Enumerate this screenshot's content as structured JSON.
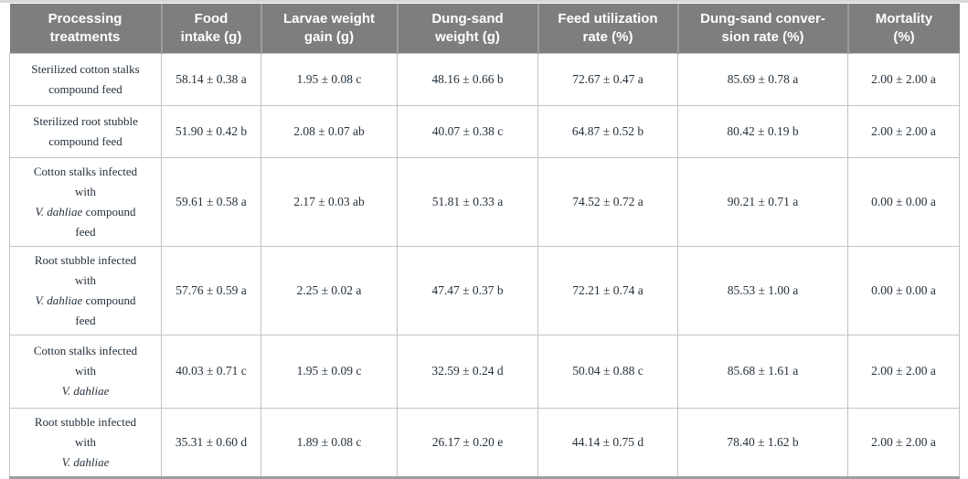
{
  "colors": {
    "header_bg": "#7e7e7e",
    "header_text": "#ffffff",
    "header_divider": "#9d9d9d",
    "body_text": "#25313c",
    "cell_border": "#c4c4c4",
    "bottom_border": "#9e9e9e",
    "top_border": "#d9d9d9"
  },
  "table": {
    "headers": [
      {
        "lines": [
          "Processing",
          "treatments"
        ]
      },
      {
        "lines": [
          "Food",
          "intake (g)"
        ]
      },
      {
        "lines": [
          "Larvae weight",
          "gain (g)"
        ]
      },
      {
        "lines": [
          "Dung-sand",
          "weight (g)"
        ]
      },
      {
        "lines": [
          "Feed utilization",
          "rate (%)"
        ]
      },
      {
        "lines": [
          "Dung-sand conver-",
          "sion rate (%)"
        ]
      },
      {
        "lines": [
          "Mortality",
          "(%)"
        ]
      }
    ],
    "rows": [
      {
        "treatment": [
          [
            {
              "t": "Sterilized cotton stalks",
              "i": false
            }
          ],
          [
            {
              "t": "compound feed",
              "i": false
            }
          ]
        ],
        "values": [
          "58.14 ± 0.38 a",
          "1.95 ± 0.08 c",
          "48.16 ± 0.66 b",
          "72.67 ± 0.47 a",
          "85.69 ± 0.78 a",
          "2.00 ± 2.00 a"
        ]
      },
      {
        "treatment": [
          [
            {
              "t": "Sterilized root stubble",
              "i": false
            }
          ],
          [
            {
              "t": "compound feed",
              "i": false
            }
          ]
        ],
        "values": [
          "51.90 ± 0.42 b",
          "2.08 ± 0.07 ab",
          "40.07 ± 0.38 c",
          "64.87 ± 0.52 b",
          "80.42 ± 0.19 b",
          "2.00 ± 2.00 a"
        ]
      },
      {
        "treatment": [
          [
            {
              "t": "Cotton stalks infected",
              "i": false
            }
          ],
          [
            {
              "t": "with",
              "i": false
            }
          ],
          [
            {
              "t": "V. dahliae",
              "i": true
            },
            {
              "t": " compound",
              "i": false
            }
          ],
          [
            {
              "t": "feed",
              "i": false
            }
          ]
        ],
        "values": [
          "59.61 ± 0.58 a",
          "2.17 ± 0.03 ab",
          "51.81 ± 0.33 a",
          "74.52 ± 0.72 a",
          "90.21 ± 0.71 a",
          "0.00 ± 0.00 a"
        ]
      },
      {
        "treatment": [
          [
            {
              "t": "Root stubble infected",
              "i": false
            }
          ],
          [
            {
              "t": "with",
              "i": false
            }
          ],
          [
            {
              "t": "V. dahliae",
              "i": true
            },
            {
              "t": " compound",
              "i": false
            }
          ],
          [
            {
              "t": "feed",
              "i": false
            }
          ]
        ],
        "values": [
          "57.76 ± 0.59 a",
          "2.25 ± 0.02 a",
          "47.47 ± 0.37 b",
          "72.21 ± 0.74 a",
          "85.53 ± 1.00 a",
          "0.00 ± 0.00 a"
        ]
      },
      {
        "treatment": [
          [
            {
              "t": "Cotton stalks infected",
              "i": false
            }
          ],
          [
            {
              "t": "with",
              "i": false
            }
          ],
          [
            {
              "t": "V. dahliae",
              "i": true
            }
          ]
        ],
        "values": [
          "40.03 ± 0.71 c",
          "1.95 ± 0.09 c",
          "32.59 ± 0.24 d",
          "50.04 ± 0.88 c",
          "85.68 ± 1.61 a",
          "2.00 ± 2.00 a"
        ]
      },
      {
        "treatment": [
          [
            {
              "t": "Root stubble infected",
              "i": false
            }
          ],
          [
            {
              "t": "with",
              "i": false
            }
          ],
          [
            {
              "t": "V. dahliae",
              "i": true
            }
          ]
        ],
        "values": [
          "35.31 ± 0.60 d",
          "1.89 ± 0.08 c",
          "26.17 ± 0.20 e",
          "44.14 ± 0.75 d",
          "78.40 ± 1.62 b",
          "2.00 ± 2.00 a"
        ]
      }
    ]
  }
}
